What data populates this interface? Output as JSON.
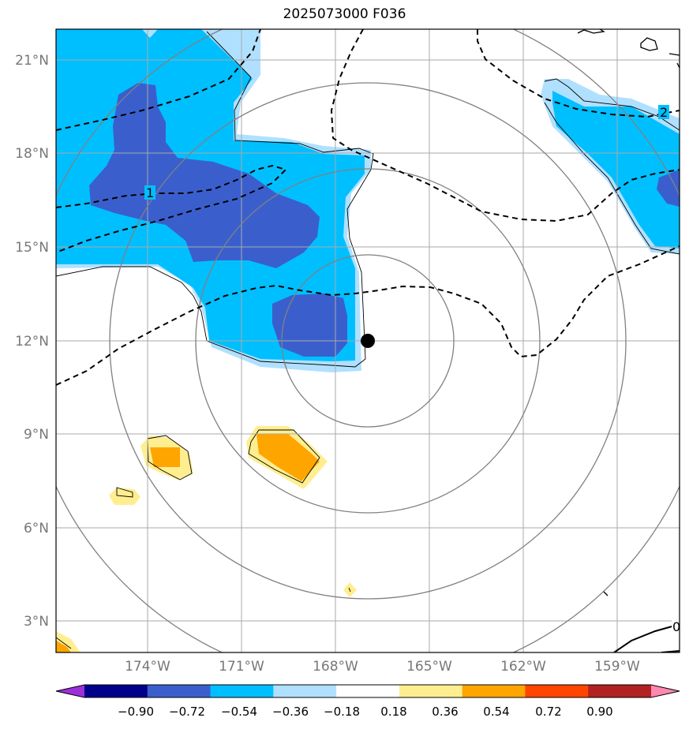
{
  "title": "2025073000 F036",
  "lat_labels": [
    "21°N",
    "18°N",
    "15°N",
    "12°N",
    "9°N",
    "6°N",
    "3°N"
  ],
  "lon_labels": [
    "174°W",
    "171°W",
    "168°W",
    "165°W",
    "162°W",
    "159°W"
  ],
  "colorbar": {
    "ticks": [
      "−0.90",
      "−0.72",
      "−0.54",
      "−0.36",
      "−0.18",
      "0.18",
      "0.36",
      "0.54",
      "0.72",
      "0.90"
    ],
    "colors": [
      "#9b30d9",
      "#00008b",
      "#3a5fcd",
      "#00bfff",
      "#b0e0ff",
      "#ffffff",
      "#ffee90",
      "#ffa500",
      "#ff4500",
      "#b22222",
      "#ff88b0"
    ]
  },
  "contour_labels": [
    "1",
    "2",
    "0"
  ],
  "colors": {
    "dark_blue": "#3a5fcd",
    "mid_blue": "#00bfff",
    "light_blue": "#b0e0ff",
    "light_yellow": "#ffee90",
    "orange": "#ffa500",
    "grid": "#aaaaaa",
    "range_rings": "#808080"
  },
  "storm_center": {
    "lat": 12.0,
    "lon": -167.0
  }
}
